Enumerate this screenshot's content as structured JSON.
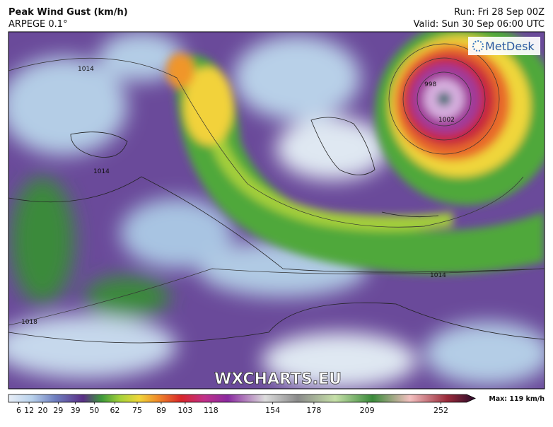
{
  "header": {
    "title": "Peak Wind Gust (km/h)",
    "model": "ARPEGE 0.1°",
    "run": "Run: Fri 28 Sep 00Z",
    "valid": "Valid: Sun 30 Sep 06:00 UTC"
  },
  "map": {
    "logo": "MetDesk",
    "watermark": "WXCHARTS.EU",
    "isobar_labels": [
      "1014",
      "1014",
      "1002",
      "998",
      "1014",
      "1018"
    ]
  },
  "colorbar": {
    "lim": [
      0,
      272
    ],
    "ticks": [
      6,
      12,
      20,
      29,
      39,
      50,
      62,
      75,
      89,
      103,
      118,
      154,
      178,
      209,
      252
    ],
    "max_label": "Max: 119 km/h"
  }
}
